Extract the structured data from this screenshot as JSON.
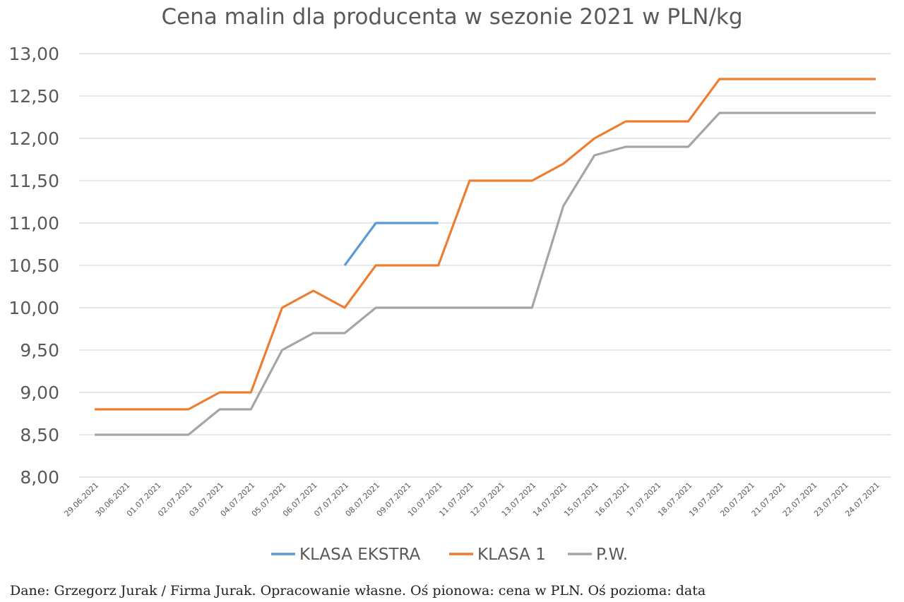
{
  "chart_data": {
    "type": "line",
    "title": "Cena malin dla producenta w sezonie 2021 w PLN/kg",
    "xlabel": "",
    "ylabel": "",
    "ylim": [
      8,
      13
    ],
    "ytick_values": [
      8,
      8.5,
      9,
      9.5,
      10,
      10.5,
      11,
      11.5,
      12,
      12.5,
      13
    ],
    "ytick_labels": [
      "8,00",
      "8,50",
      "9,00",
      "9,50",
      "10,00",
      "10,50",
      "11,00",
      "11,50",
      "12,00",
      "12,50",
      "13,00"
    ],
    "grid": true,
    "legend_position": "bottom",
    "categories": [
      "29.06.2021",
      "30.06.2021",
      "01.07.2021",
      "02.07.2021",
      "03.07.2021",
      "04.07.2021",
      "05.07.2021",
      "06.07.2021",
      "07.07.2021",
      "08.07.2021",
      "09.07.2021",
      "10.07.2021",
      "11.07.2021",
      "12.07.2021",
      "13.07.2021",
      "14.07.2021",
      "15.07.2021",
      "16.07.2021",
      "17.07.2021",
      "18.07.2021",
      "19.07.2021",
      "20.07.2021",
      "21.07.2021",
      "22.07.2021",
      "23.07.2021",
      "24.07.2021"
    ],
    "series": [
      {
        "name": "KLASA EKSTRA",
        "color": "#5b9bd5",
        "values": [
          null,
          null,
          null,
          null,
          null,
          null,
          null,
          null,
          10.5,
          11.0,
          11.0,
          11.0,
          null,
          null,
          null,
          null,
          null,
          null,
          null,
          null,
          null,
          null,
          null,
          null,
          null,
          null
        ]
      },
      {
        "name": "KLASA 1",
        "color": "#ed7d31",
        "values": [
          8.8,
          8.8,
          8.8,
          8.8,
          9.0,
          9.0,
          10.0,
          10.2,
          10.0,
          10.5,
          10.5,
          10.5,
          11.5,
          11.5,
          11.5,
          11.7,
          12.0,
          12.2,
          12.2,
          12.2,
          12.7,
          12.7,
          12.7,
          12.7,
          12.7,
          12.7
        ]
      },
      {
        "name": "P.W.",
        "color": "#a5a5a5",
        "values": [
          8.5,
          8.5,
          8.5,
          8.5,
          8.8,
          8.8,
          9.5,
          9.7,
          9.7,
          10.0,
          10.0,
          10.0,
          10.0,
          10.0,
          10.0,
          11.2,
          11.8,
          11.9,
          11.9,
          11.9,
          12.3,
          12.3,
          12.3,
          12.3,
          12.3,
          12.3
        ]
      }
    ]
  },
  "footnote": "Dane: Grzegorz Jurak / Firma Jurak. Opracowanie własne. Oś pionowa: cena w PLN. Oś pozioma: data"
}
